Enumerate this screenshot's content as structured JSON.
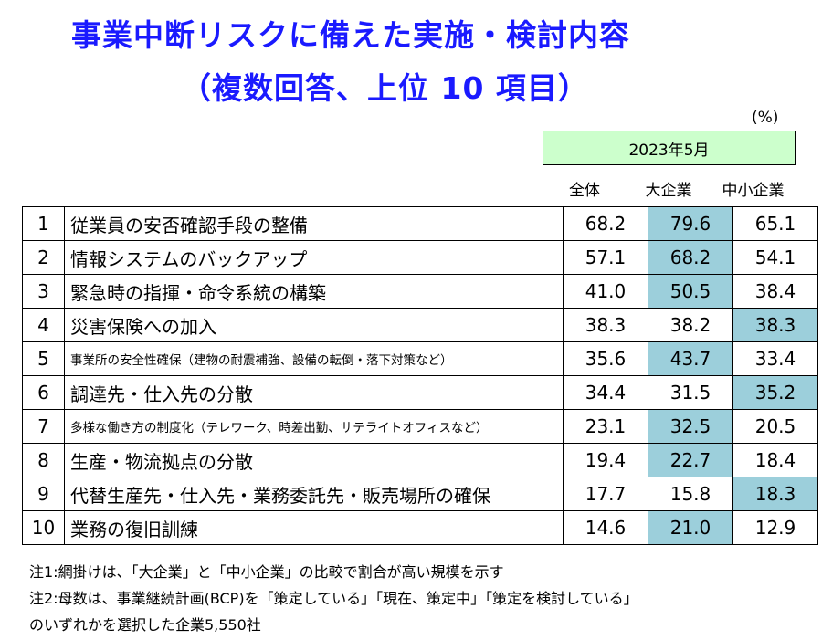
{
  "title": {
    "line1": "事業中断リスクに備えた実施・検討内容",
    "line2": "（複数回答、上位 10 項目）"
  },
  "unit_label": "(%)",
  "period_label": "2023年5月",
  "columns": [
    "全体",
    "大企業",
    "中小企業"
  ],
  "highlight_color": "#9ccfdb",
  "header_color": "#ccffcc",
  "rows": [
    {
      "rank": "1",
      "item": "従業員の安否確認手段の整備",
      "all": "68.2",
      "large": "79.6",
      "sme": "65.1",
      "highlight": "large"
    },
    {
      "rank": "2",
      "item": "情報システムのバックアップ",
      "all": "57.1",
      "large": "68.2",
      "sme": "54.1",
      "highlight": "large"
    },
    {
      "rank": "3",
      "item": "緊急時の指揮・命令系統の構築",
      "all": "41.0",
      "large": "50.5",
      "sme": "38.4",
      "highlight": "large"
    },
    {
      "rank": "4",
      "item": "災害保険への加入",
      "all": "38.3",
      "large": "38.2",
      "sme": "38.3",
      "highlight": "sme"
    },
    {
      "rank": "5",
      "item": "事業所の安全性確保（建物の耐震補強、設備の転倒・落下対策など）",
      "all": "35.6",
      "large": "43.7",
      "sme": "33.4",
      "highlight": "large",
      "small": true
    },
    {
      "rank": "6",
      "item": "調達先・仕入先の分散",
      "all": "34.4",
      "large": "31.5",
      "sme": "35.2",
      "highlight": "sme"
    },
    {
      "rank": "7",
      "item": "多様な働き方の制度化（テレワーク、時差出勤、サテライトオフィスなど）",
      "all": "23.1",
      "large": "32.5",
      "sme": "20.5",
      "highlight": "large",
      "small": true
    },
    {
      "rank": "8",
      "item": "生産・物流拠点の分散",
      "all": "19.4",
      "large": "22.7",
      "sme": "18.4",
      "highlight": "large"
    },
    {
      "rank": "9",
      "item": "代替生産先・仕入先・業務委託先・販売場所の確保",
      "all": "17.7",
      "large": "15.8",
      "sme": "18.3",
      "highlight": "sme"
    },
    {
      "rank": "10",
      "item": "業務の復旧訓練",
      "all": "14.6",
      "large": "21.0",
      "sme": "12.9",
      "highlight": "large"
    }
  ],
  "notes": [
    "注1:網掛けは、「大企業」と「中小企業」の比較で割合が高い規模を示す",
    "注2:母数は、事業継続計画(BCP)を「策定している」「現在、策定中」「策定を検討している」",
    "のいずれかを選択した企業5,550社"
  ]
}
